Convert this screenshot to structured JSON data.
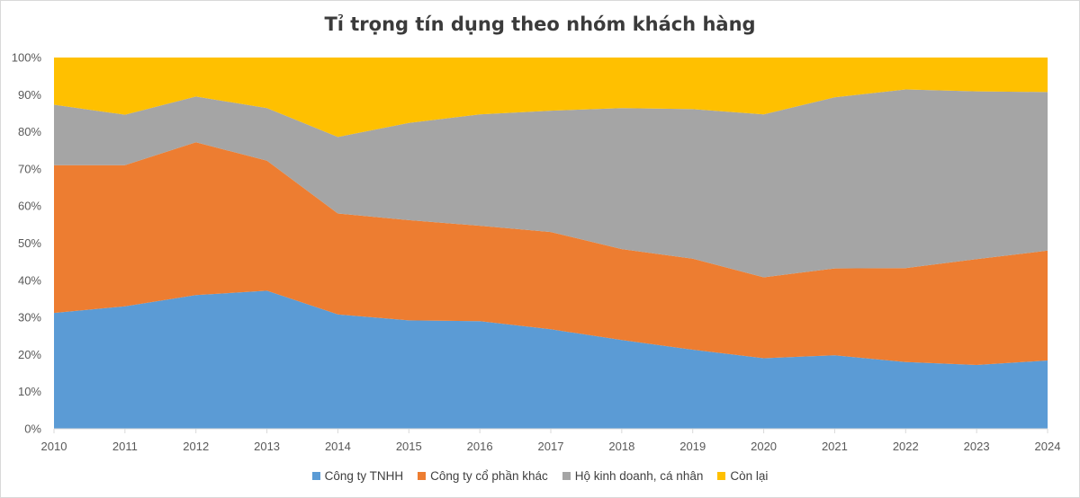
{
  "chart_data": {
    "type": "area",
    "stacked": true,
    "title": "Tỉ trọng tín dụng theo nhóm khách hàng",
    "xlabel": "",
    "ylabel": "",
    "x": [
      "2010",
      "2011",
      "2012",
      "2013",
      "2014",
      "2015",
      "2016",
      "2017",
      "2018",
      "2019",
      "2020",
      "2021",
      "2022",
      "2023",
      "2024"
    ],
    "ylim": [
      0,
      100
    ],
    "y_tick_labels": [
      "0%",
      "10%",
      "20%",
      "30%",
      "40%",
      "50%",
      "60%",
      "70%",
      "80%",
      "90%",
      "100%"
    ],
    "legend_position": "bottom",
    "grid": false,
    "series": [
      {
        "name": "Công ty TNHH",
        "color": "#5b9bd5",
        "values": [
          31.2,
          33.0,
          36.0,
          37.2,
          30.8,
          29.2,
          29.0,
          26.8,
          23.9,
          21.3,
          19.0,
          19.8,
          18.0,
          17.2,
          18.4
        ]
      },
      {
        "name": "Công ty cổ phần khác",
        "color": "#ed7d31",
        "values": [
          39.8,
          38.0,
          41.2,
          35.0,
          27.2,
          27.0,
          25.7,
          26.2,
          24.5,
          24.5,
          21.8,
          23.4,
          25.3,
          28.5,
          29.6
        ]
      },
      {
        "name": "Hộ kinh doanh, cá nhân",
        "color": "#a5a5a5",
        "values": [
          16.3,
          13.6,
          12.3,
          14.2,
          20.6,
          26.2,
          30.0,
          32.7,
          38.0,
          40.3,
          43.9,
          46.1,
          48.1,
          45.2,
          42.7
        ]
      },
      {
        "name": "Còn lại",
        "color": "#ffc000",
        "values": [
          12.7,
          15.4,
          10.5,
          13.6,
          21.4,
          17.6,
          15.3,
          14.3,
          13.6,
          13.9,
          15.3,
          10.7,
          8.6,
          9.1,
          9.3
        ]
      }
    ]
  }
}
